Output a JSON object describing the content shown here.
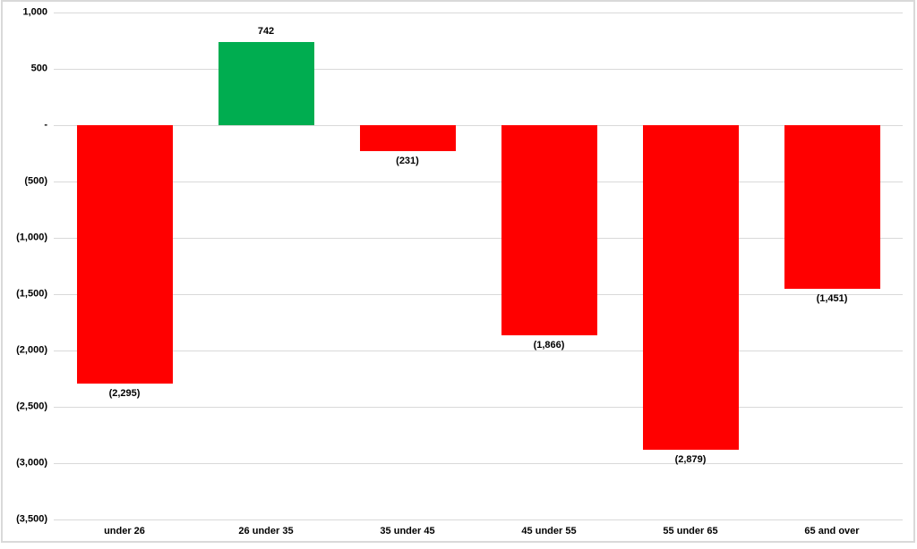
{
  "chart_data": {
    "type": "bar",
    "title": "",
    "categories": [
      "under 26",
      "26 under 35",
      "35 under 45",
      "45 under 55",
      "55 under 65",
      "65 and over"
    ],
    "values": [
      -2295,
      742,
      -231,
      -1866,
      -2879,
      -1451
    ],
    "value_labels": [
      "(2,295)",
      "742",
      "(231)",
      "(1,866)",
      "(2,879)",
      "(1,451)"
    ],
    "y_ticks": [
      1000,
      500,
      0,
      -500,
      -1000,
      -1500,
      -2000,
      -2500,
      -3000,
      -3500
    ],
    "y_tick_labels": [
      "1,000",
      "500",
      "-",
      "(500)",
      "(1,000)",
      "(1,500)",
      "(2,000)",
      "(2,500)",
      "(3,000)",
      "(3,500)"
    ],
    "xlabel": "",
    "ylabel": "",
    "ylim": [
      -3500,
      1000
    ],
    "grid": true,
    "legend": "none",
    "colors": {
      "positive": "#00AD50",
      "negative": "#FF0000",
      "gridline": "#D9D9D9",
      "border": "#D9D9D9",
      "text": "#000000",
      "background": "#FFFFFF"
    }
  }
}
